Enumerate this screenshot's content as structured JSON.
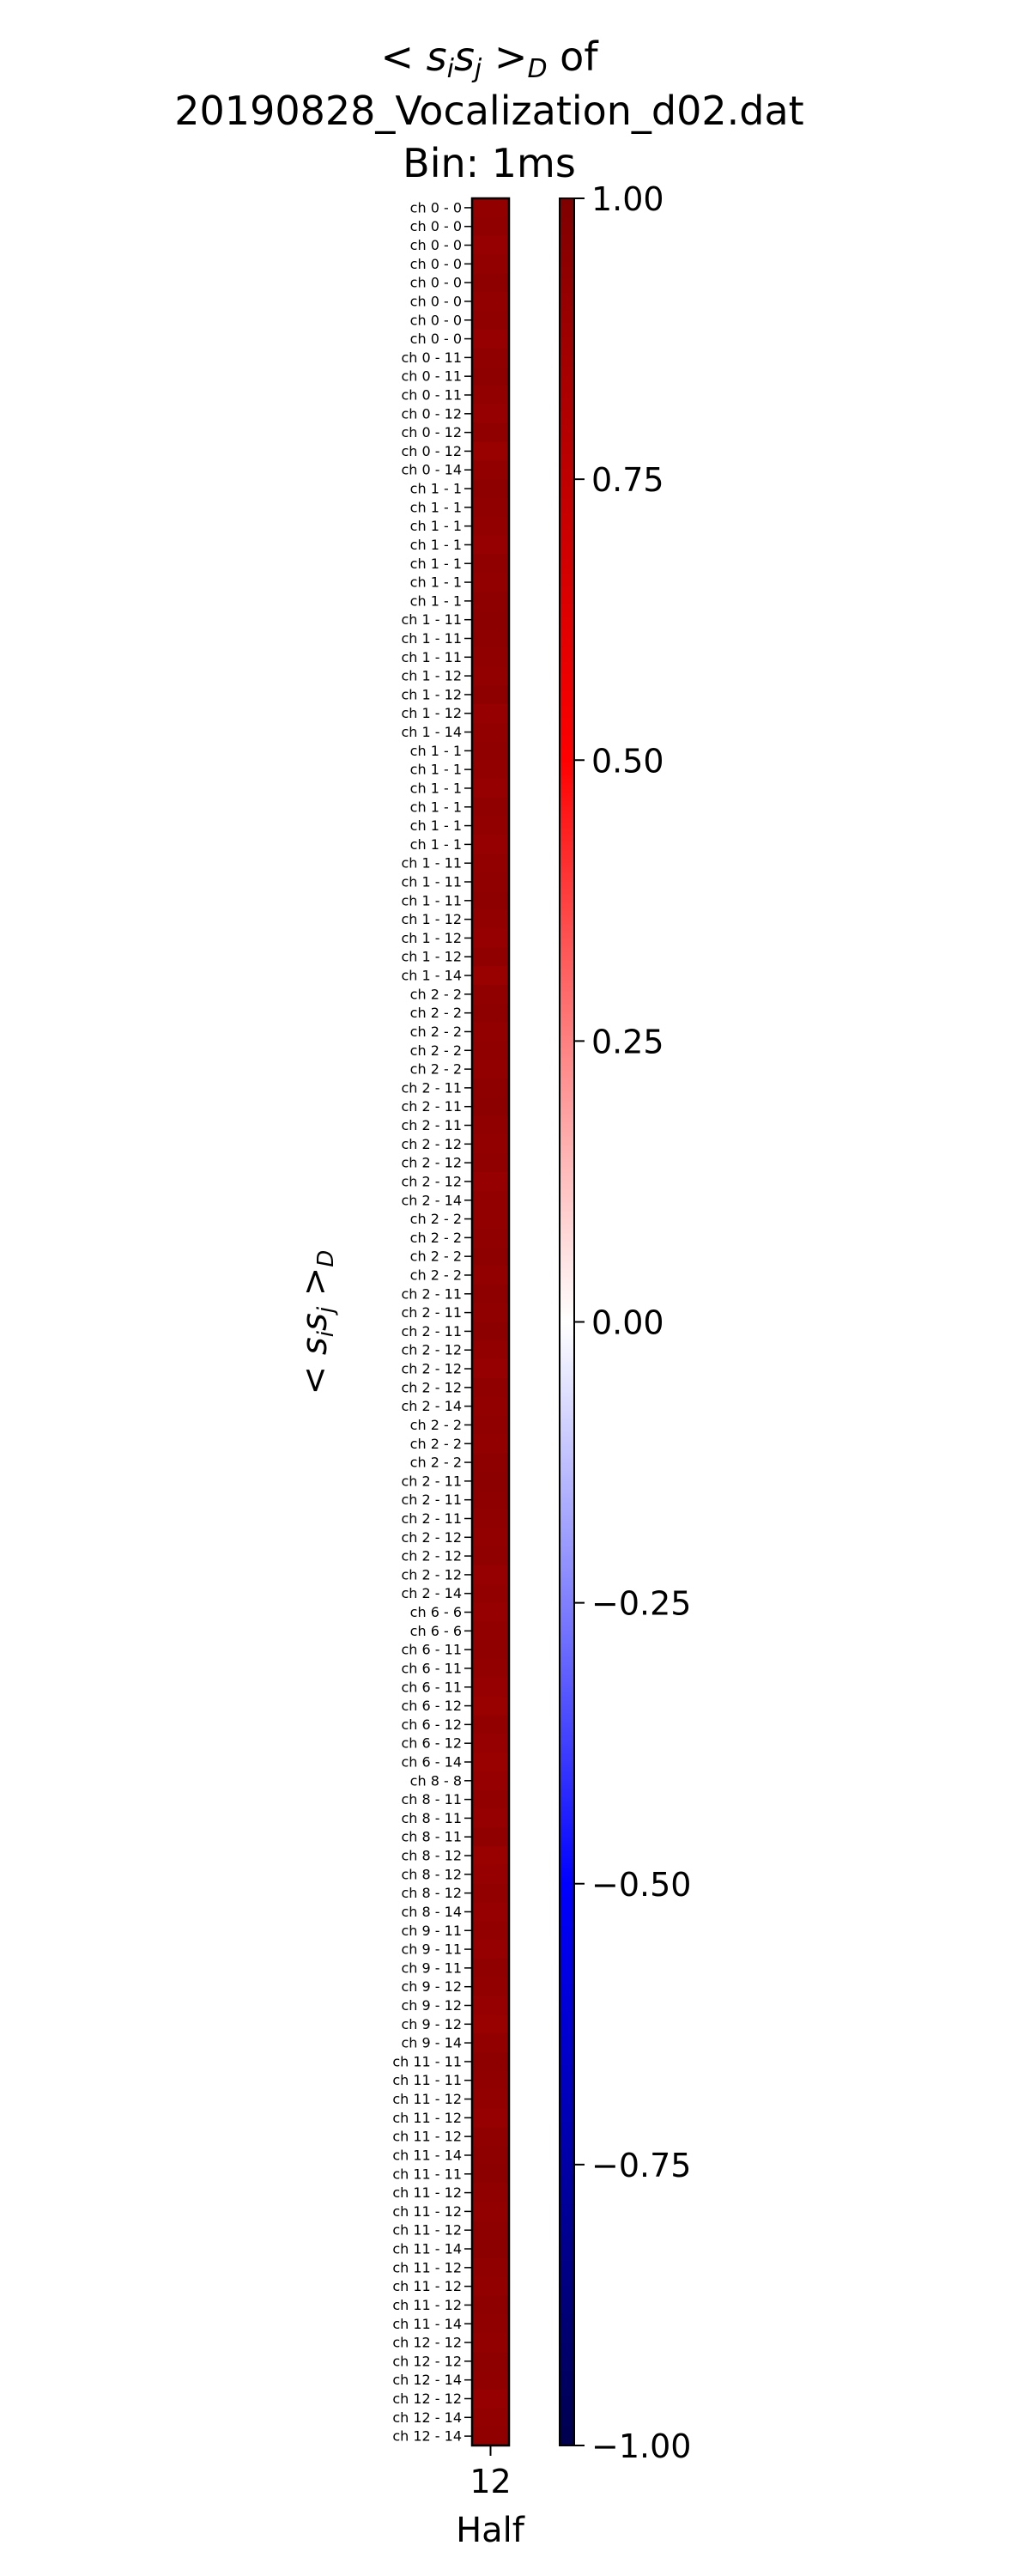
{
  "chart_data": {
    "type": "heatmap",
    "title_lines": [
      "< s_i s_j >_D of",
      "20190828_Vocalization_d02.dat",
      "Bin: 1ms"
    ],
    "ylabel": "< s_i s_j >_D",
    "xlabel": "Half",
    "x_categories": [
      "12"
    ],
    "y_labels": [
      "ch  0 -  0",
      "ch  0 -  0",
      "ch  0 -  0",
      "ch  0 -  0",
      "ch  0 -  0",
      "ch  0 -  0",
      "ch  0 -  0",
      "ch  0 -  0",
      "ch  0 - 11",
      "ch  0 - 11",
      "ch  0 - 11",
      "ch  0 - 12",
      "ch  0 - 12",
      "ch  0 - 12",
      "ch  0 - 14",
      "ch  1 -  1",
      "ch  1 -  1",
      "ch  1 -  1",
      "ch  1 -  1",
      "ch  1 -  1",
      "ch  1 -  1",
      "ch  1 -  1",
      "ch  1 - 11",
      "ch  1 - 11",
      "ch  1 - 11",
      "ch  1 - 12",
      "ch  1 - 12",
      "ch  1 - 12",
      "ch  1 - 14",
      "ch  1 -  1",
      "ch  1 -  1",
      "ch  1 -  1",
      "ch  1 -  1",
      "ch  1 -  1",
      "ch  1 -  1",
      "ch  1 - 11",
      "ch  1 - 11",
      "ch  1 - 11",
      "ch  1 - 12",
      "ch  1 - 12",
      "ch  1 - 12",
      "ch  1 - 14",
      "ch  2 -  2",
      "ch  2 -  2",
      "ch  2 -  2",
      "ch  2 -  2",
      "ch  2 -  2",
      "ch  2 - 11",
      "ch  2 - 11",
      "ch  2 - 11",
      "ch  2 - 12",
      "ch  2 - 12",
      "ch  2 - 12",
      "ch  2 - 14",
      "ch  2 -  2",
      "ch  2 -  2",
      "ch  2 -  2",
      "ch  2 -  2",
      "ch  2 - 11",
      "ch  2 - 11",
      "ch  2 - 11",
      "ch  2 - 12",
      "ch  2 - 12",
      "ch  2 - 12",
      "ch  2 - 14",
      "ch  2 -  2",
      "ch  2 -  2",
      "ch  2 -  2",
      "ch  2 - 11",
      "ch  2 - 11",
      "ch  2 - 11",
      "ch  2 - 12",
      "ch  2 - 12",
      "ch  2 - 12",
      "ch  2 - 14",
      "ch  6 -  6",
      "ch  6 -  6",
      "ch  6 - 11",
      "ch  6 - 11",
      "ch  6 - 11",
      "ch  6 - 12",
      "ch  6 - 12",
      "ch  6 - 12",
      "ch  6 - 14",
      "ch  8 -  8",
      "ch  8 - 11",
      "ch  8 - 11",
      "ch  8 - 11",
      "ch  8 - 12",
      "ch  8 - 12",
      "ch  8 - 12",
      "ch  8 - 14",
      "ch  9 - 11",
      "ch  9 - 11",
      "ch  9 - 11",
      "ch  9 - 12",
      "ch  9 - 12",
      "ch  9 - 12",
      "ch  9 - 14",
      "ch 11 - 11",
      "ch 11 - 11",
      "ch 11 - 12",
      "ch 11 - 12",
      "ch 11 - 12",
      "ch 11 - 14",
      "ch 11 - 11",
      "ch 11 - 12",
      "ch 11 - 12",
      "ch 11 - 12",
      "ch 11 - 14",
      "ch 11 - 12",
      "ch 11 - 12",
      "ch 11 - 12",
      "ch 11 - 14",
      "ch 12 - 12",
      "ch 12 - 12",
      "ch 12 - 14",
      "ch 12 - 12",
      "ch 12 - 14",
      "ch 12 - 14"
    ],
    "values": [
      0.92,
      0.93,
      0.91,
      0.92,
      0.94,
      0.92,
      0.93,
      0.91,
      0.93,
      0.94,
      0.92,
      0.91,
      0.93,
      0.9,
      0.92,
      0.94,
      0.93,
      0.92,
      0.91,
      0.93,
      0.92,
      0.94,
      0.95,
      0.94,
      0.93,
      0.92,
      0.94,
      0.91,
      0.92,
      0.93,
      0.92,
      0.91,
      0.93,
      0.92,
      0.91,
      0.92,
      0.93,
      0.94,
      0.92,
      0.91,
      0.93,
      0.9,
      0.93,
      0.94,
      0.92,
      0.93,
      0.92,
      0.94,
      0.95,
      0.93,
      0.92,
      0.93,
      0.91,
      0.92,
      0.92,
      0.93,
      0.94,
      0.92,
      0.94,
      0.93,
      0.95,
      0.92,
      0.91,
      0.93,
      0.92,
      0.93,
      0.92,
      0.94,
      0.95,
      0.94,
      0.93,
      0.92,
      0.93,
      0.91,
      0.92,
      0.91,
      0.92,
      0.93,
      0.92,
      0.91,
      0.9,
      0.92,
      0.91,
      0.9,
      0.91,
      0.92,
      0.91,
      0.93,
      0.9,
      0.91,
      0.92,
      0.91,
      0.92,
      0.91,
      0.93,
      0.92,
      0.91,
      0.9,
      0.92,
      0.94,
      0.93,
      0.92,
      0.91,
      0.93,
      0.94,
      0.95,
      0.93,
      0.92,
      0.94,
      0.95,
      0.93,
      0.92,
      0.94,
      0.93,
      0.92,
      0.94,
      0.93,
      0.91,
      0.92,
      0.93
    ],
    "colorbar": {
      "ticks": [
        1.0,
        0.75,
        0.5,
        0.25,
        0.0,
        -0.25,
        -0.5,
        -0.75,
        -1.0
      ],
      "tick_labels": [
        "1.00",
        "0.75",
        "0.50",
        "0.25",
        "0.00",
        "−0.25",
        "−0.50",
        "−0.75",
        "−1.00"
      ],
      "range": [
        -1,
        1
      ],
      "colormap": "seismic"
    }
  }
}
